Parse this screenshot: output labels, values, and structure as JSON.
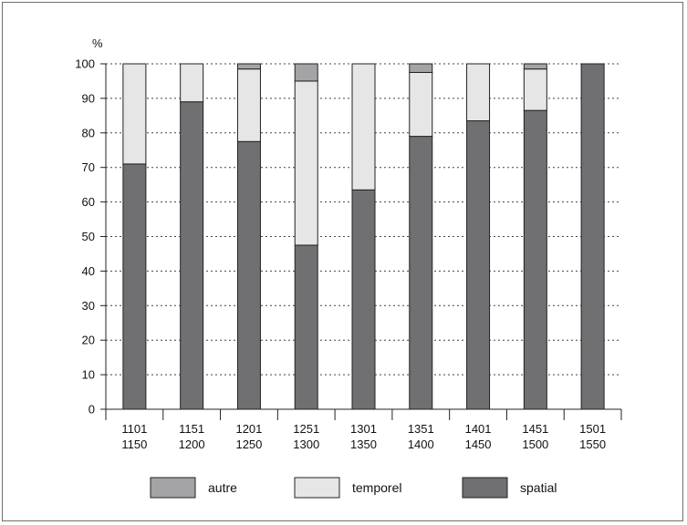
{
  "chart_data": {
    "type": "bar",
    "stacked": true,
    "ylabel": "%",
    "ylim": [
      0,
      100
    ],
    "yticks": [
      0,
      10,
      20,
      30,
      40,
      50,
      60,
      70,
      80,
      90,
      100
    ],
    "grid": "horizontal-dotted",
    "legend_position": "bottom",
    "categories": [
      [
        "1101",
        "1150"
      ],
      [
        "1151",
        "1200"
      ],
      [
        "1201",
        "1250"
      ],
      [
        "1251",
        "1300"
      ],
      [
        "1301",
        "1350"
      ],
      [
        "1351",
        "1400"
      ],
      [
        "1401",
        "1450"
      ],
      [
        "1451",
        "1500"
      ],
      [
        "1501",
        "1550"
      ]
    ],
    "series": [
      {
        "name": "spatial",
        "color": "#707072",
        "values": [
          71,
          89,
          77.5,
          47.5,
          63.5,
          79,
          83.5,
          86.5,
          100
        ]
      },
      {
        "name": "temporel",
        "color": "#e6e6e6",
        "values": [
          29,
          11,
          21,
          47.5,
          36.5,
          18.5,
          16.5,
          12,
          0
        ]
      },
      {
        "name": "autre",
        "color": "#a4a4a6",
        "values": [
          0,
          0,
          1.5,
          5,
          0,
          2.5,
          0,
          1.5,
          0
        ]
      }
    ],
    "legend_order": [
      "autre",
      "temporel",
      "spatial"
    ]
  }
}
